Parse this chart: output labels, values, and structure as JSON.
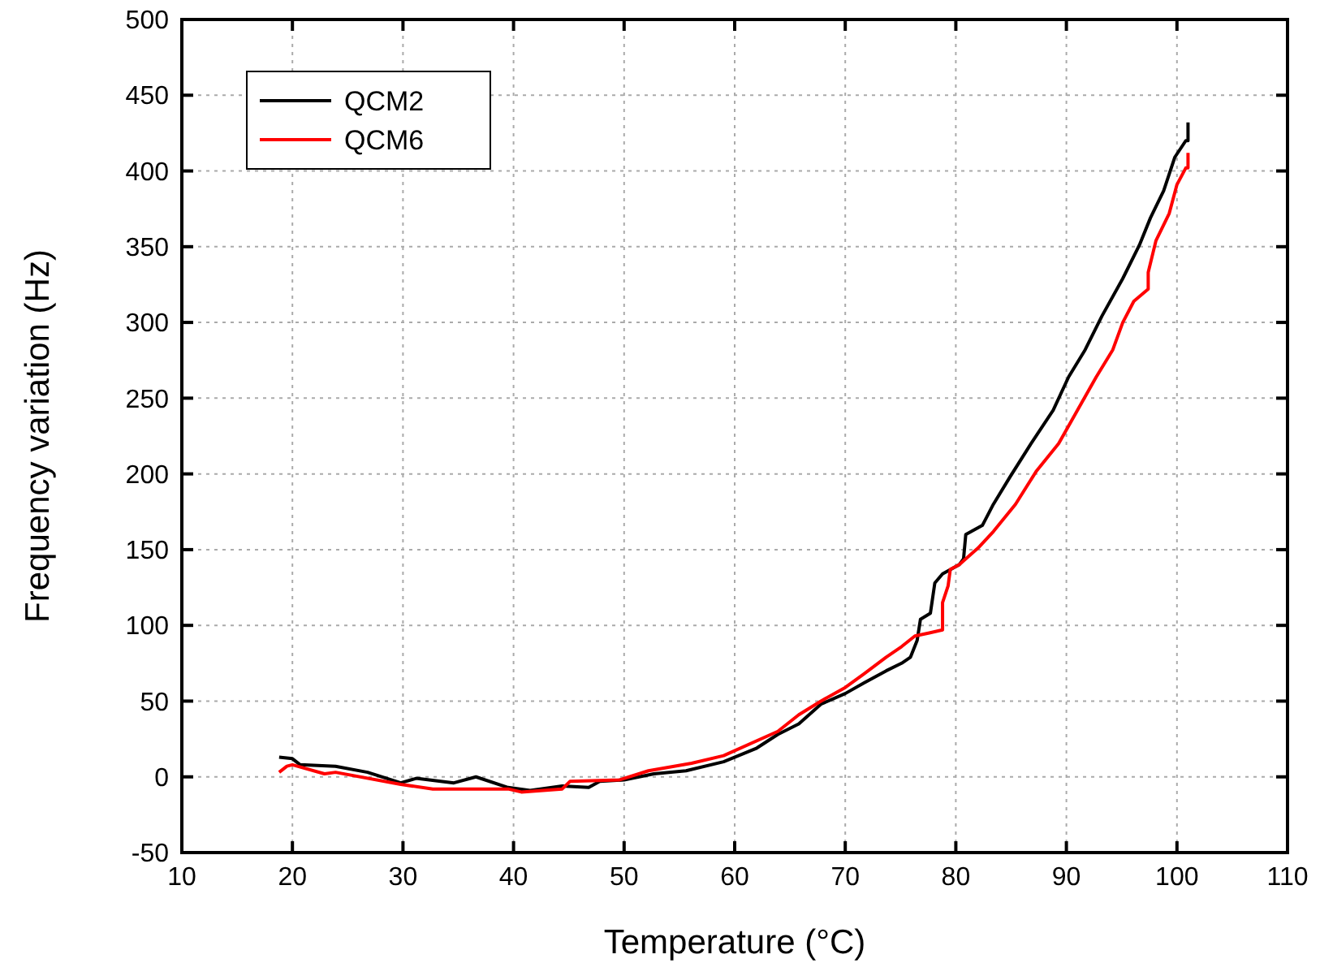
{
  "chart_data": {
    "type": "line",
    "xlabel": "Temperature (°C)",
    "ylabel": "Frequency variation (Hz)",
    "xlim": [
      10,
      110
    ],
    "xticks": [
      10,
      20,
      30,
      40,
      50,
      60,
      70,
      80,
      90,
      100,
      110
    ],
    "ylim": [
      -50,
      500
    ],
    "yticks": [
      -50,
      0,
      50,
      100,
      150,
      200,
      250,
      300,
      350,
      400,
      450,
      500
    ],
    "grid": true,
    "legend": "top left",
    "line_style": "solid",
    "marker": "none",
    "series": [
      {
        "name": "QCM2",
        "color": "#000000",
        "x": [
          18.8,
          20,
          20.7,
          23.9,
          26.8,
          29.8,
          31.2,
          34.6,
          36.6,
          39.5,
          41.5,
          44.4,
          46.8,
          47.8,
          50,
          52.7,
          55.6,
          59,
          62,
          63.9,
          65.8,
          67.8,
          70,
          71.7,
          73.7,
          75.1,
          75.9,
          76.5,
          76.8,
          77.7,
          78.1,
          78.8,
          80.3,
          80.7,
          80.9,
          82.4,
          83.4,
          84.9,
          86.8,
          88.8,
          90.2,
          91.7,
          93.2,
          95.1,
          96.6,
          97.6,
          98.8,
          99.8,
          100.8,
          101,
          101
        ],
        "values": [
          13,
          12,
          8,
          7,
          3,
          -4,
          -1,
          -4,
          0,
          -7,
          -9,
          -6,
          -7,
          -3,
          -2,
          2,
          4,
          10,
          19,
          28,
          35,
          48,
          55,
          62,
          70,
          75,
          79,
          90,
          104,
          108,
          128,
          134,
          140,
          144,
          160,
          166,
          180,
          198,
          220,
          242,
          264,
          282,
          304,
          329,
          351,
          369,
          387,
          409,
          420,
          420,
          432
        ]
      },
      {
        "name": "QCM6",
        "color": "#ff0000",
        "x": [
          18.8,
          19.5,
          20,
          22.9,
          23.9,
          29.8,
          32.7,
          39.5,
          40.7,
          44.4,
          45.1,
          49.6,
          52.2,
          56.1,
          59,
          63.9,
          65.8,
          67.8,
          70,
          71.7,
          73.7,
          75.1,
          76.3,
          77.6,
          78.8,
          78.8,
          79.3,
          79.5,
          80.3,
          82,
          83.4,
          85.4,
          87.3,
          89.3,
          91,
          92.7,
          94.2,
          95.1,
          96.1,
          97.4,
          97.4,
          98.1,
          99.3,
          100,
          100.8,
          101,
          101
        ],
        "values": [
          3,
          7,
          8,
          2,
          3,
          -5,
          -8,
          -8,
          -10,
          -8,
          -3,
          -2,
          4,
          9,
          14,
          30,
          41,
          50,
          59,
          68,
          79,
          86,
          93,
          95,
          97,
          115,
          126,
          137,
          140,
          151,
          162,
          180,
          202,
          220,
          242,
          264,
          282,
          300,
          314,
          322,
          333,
          354,
          372,
          391,
          402,
          402,
          412
        ]
      }
    ]
  }
}
